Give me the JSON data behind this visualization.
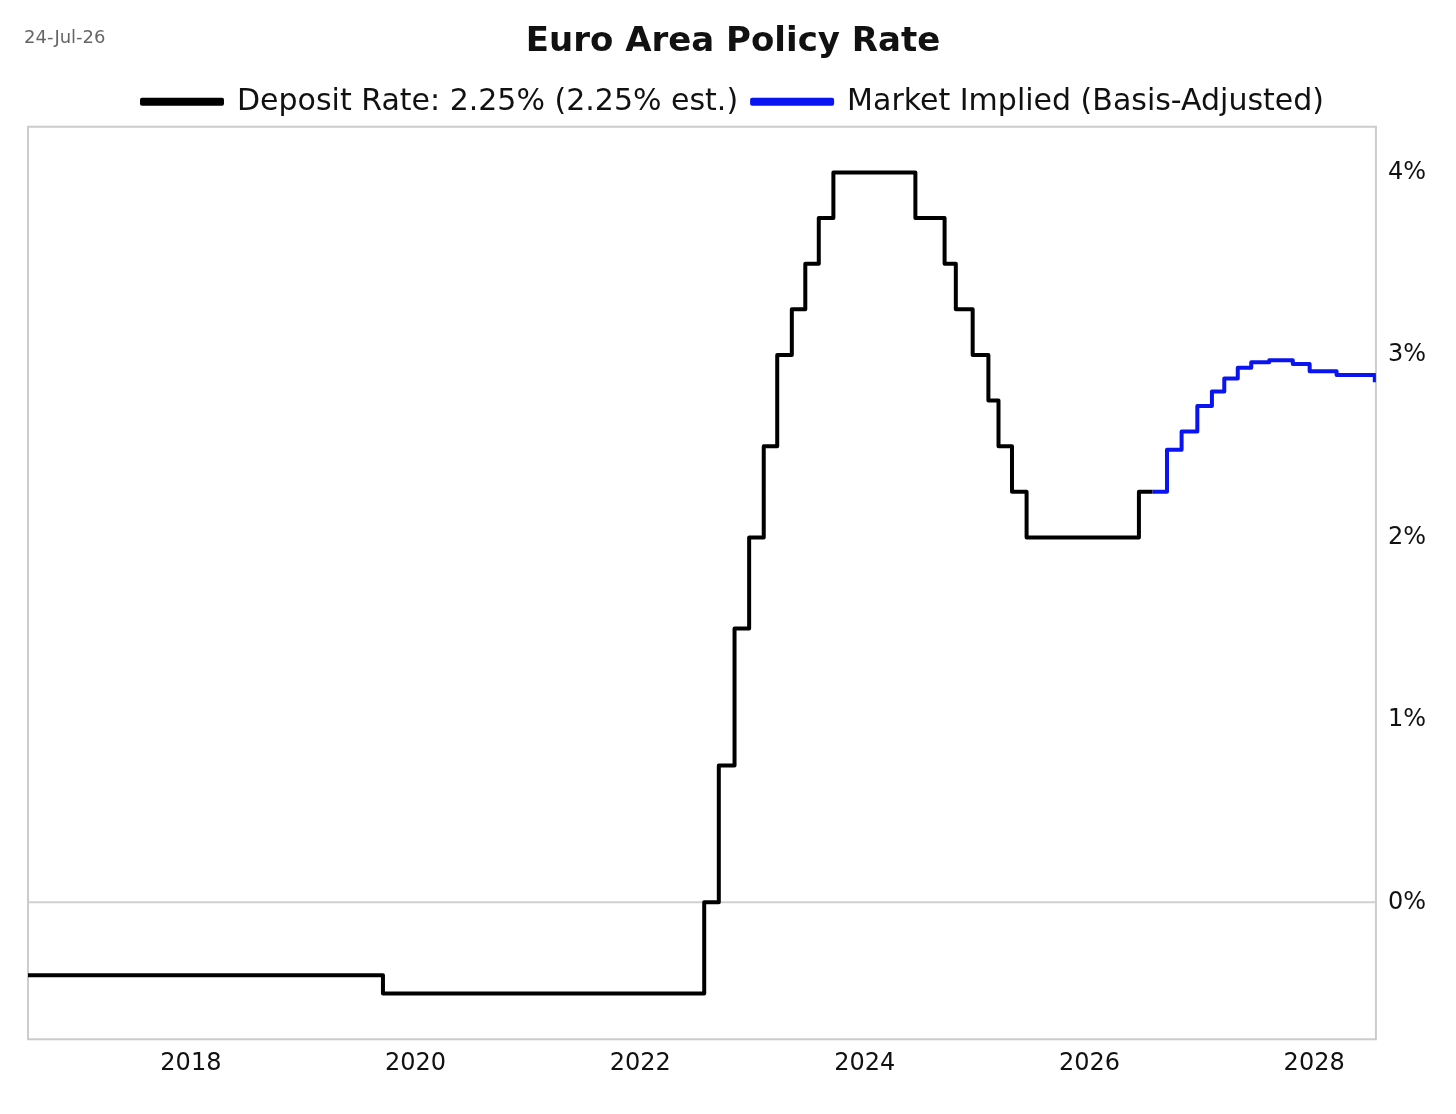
{
  "chart_data": {
    "type": "step",
    "title": "Euro Area Policy Rate",
    "annotations": [
      "24-Jul-26"
    ],
    "series": [
      {
        "name": "Deposit Rate: 2.25% (2.25% est.)",
        "color": "#000000",
        "x": [
          2016.55,
          2019.71,
          2022.57,
          2022.7,
          2022.84,
          2022.97,
          2023.1,
          2023.22,
          2023.35,
          2023.47,
          2023.59,
          2023.72,
          2024.45,
          2024.71,
          2024.81,
          2024.96,
          2025.1,
          2025.19,
          2025.31,
          2025.44,
          2026.44,
          2026.56
        ],
        "values": [
          -0.4,
          -0.5,
          0,
          0.75,
          1.5,
          2,
          2.5,
          3,
          3.25,
          3.5,
          3.75,
          4,
          3.75,
          3.5,
          3.25,
          3,
          2.75,
          2.5,
          2.25,
          2,
          2.25,
          2.25
        ]
      },
      {
        "name": "Market Implied (Basis-Adjusted)",
        "color": "#0a14f0",
        "x": [
          2026.56,
          2026.69,
          2026.82,
          2026.96,
          2027.09,
          2027.2,
          2027.32,
          2027.44,
          2027.6,
          2027.81,
          2027.96,
          2028.2,
          2028.54
        ],
        "values": [
          2.25,
          2.48,
          2.58,
          2.72,
          2.8,
          2.87,
          2.93,
          2.96,
          2.97,
          2.95,
          2.91,
          2.89,
          2.85
        ]
      }
    ],
    "xlim": [
      2016.55,
      2028.55
    ],
    "xticks": [
      2018,
      2020,
      2022,
      2024,
      2026,
      2028
    ],
    "ylim": [
      -0.75,
      4.25
    ],
    "yticks": [
      {
        "value": 0,
        "label": "0%"
      },
      {
        "value": 1,
        "label": "1%"
      },
      {
        "value": 2,
        "label": "2%"
      },
      {
        "value": 3,
        "label": "3%"
      },
      {
        "value": 4,
        "label": "4%"
      }
    ],
    "ref_lines": [
      {
        "axis": "y",
        "value": 0,
        "color": "#d0d0d0"
      }
    ],
    "legend": "top",
    "grid": false,
    "marker": "none",
    "line_style": "solid"
  }
}
